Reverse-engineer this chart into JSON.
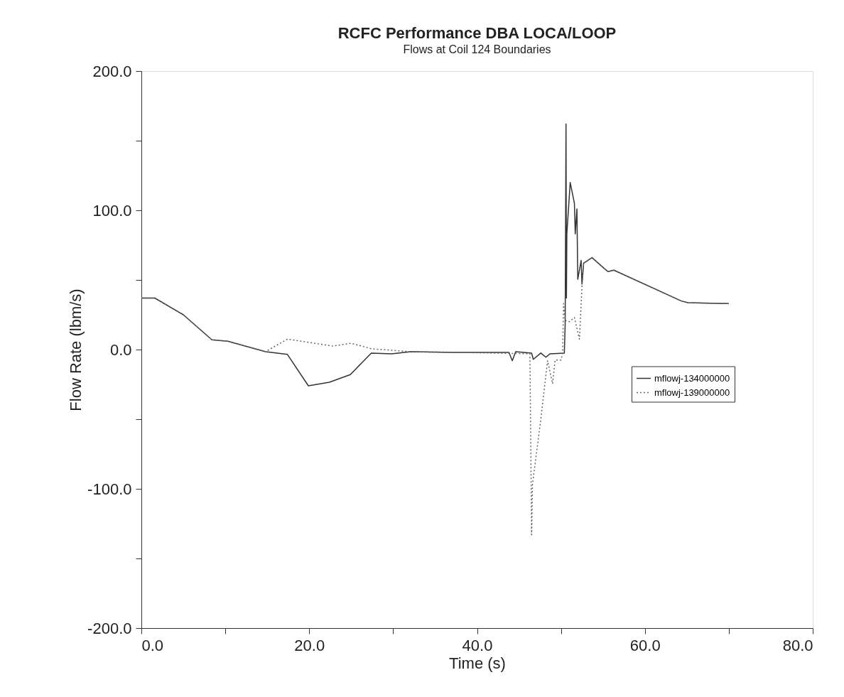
{
  "chart_data": {
    "type": "line",
    "title": "RCFC Performance DBA LOCA/LOOP",
    "subtitle": "Flows at Coil 124 Boundaries",
    "xlabel": "Time (s)",
    "ylabel": "Flow Rate (lbm/s)",
    "xlim": [
      0,
      80
    ],
    "ylim": [
      -200,
      200
    ],
    "xticks": [
      {
        "value": 0,
        "label": "0.0"
      },
      {
        "value": 10,
        "label": null
      },
      {
        "value": 20,
        "label": "20.0"
      },
      {
        "value": 30,
        "label": null
      },
      {
        "value": 40,
        "label": "40.0"
      },
      {
        "value": 50,
        "label": null
      },
      {
        "value": 60,
        "label": "60.0"
      },
      {
        "value": 70,
        "label": null
      },
      {
        "value": 80,
        "label": "80.0"
      }
    ],
    "yticks": [
      {
        "value": -200,
        "label": "-200.0"
      },
      {
        "value": -150,
        "label": null
      },
      {
        "value": -100,
        "label": "-100.0"
      },
      {
        "value": -50,
        "label": null
      },
      {
        "value": 0,
        "label": "0.0"
      },
      {
        "value": 50,
        "label": null
      },
      {
        "value": 100,
        "label": "100.0"
      },
      {
        "value": 150,
        "label": null
      },
      {
        "value": 200,
        "label": "200.0"
      }
    ],
    "grid": false,
    "legend": "right",
    "marker": "none",
    "series": [
      {
        "name": "mflowj-134000000",
        "color": "#333333",
        "line_style": "solid",
        "x": [
          0,
          1.6,
          5.0,
          8.4,
          10.3,
          14.8,
          17.4,
          19.9,
          22.4,
          24.9,
          27.4,
          29.8,
          32.1,
          37.2,
          43.8,
          44.2,
          44.6,
          46.5,
          46.7,
          47.6,
          48.2,
          48.7,
          50.4,
          50.5,
          50.6,
          50.65,
          50.7,
          51.1,
          51.6,
          51.7,
          51.9,
          52.0,
          52.4,
          52.5,
          52.7,
          53.7,
          55.2,
          55.6,
          56.3,
          64.3,
          65.1,
          70.0
        ],
        "values": [
          37,
          37,
          25,
          7,
          6,
          -1.5,
          -3.5,
          -26,
          -23.5,
          -18,
          -2.5,
          -3,
          -1.5,
          -2,
          -2,
          -8,
          -1.5,
          -2.5,
          -7,
          -2.5,
          -5.5,
          -3,
          -2.5,
          18,
          162,
          37,
          83,
          120,
          105,
          83,
          101,
          50.5,
          64,
          47,
          62,
          66,
          58,
          56,
          57,
          35,
          33.7,
          33
        ]
      },
      {
        "name": "mflowj-139000000",
        "color": "#666666",
        "line_style": "dotted",
        "x": [
          0,
          1.6,
          5.0,
          8.4,
          10.3,
          14.8,
          17.4,
          22.8,
          25.0,
          27.5,
          32.1,
          37.2,
          46.3,
          46.5,
          46.6,
          47.6,
          48.4,
          49.0,
          49.3,
          50.0,
          50.2,
          50.3,
          50.5,
          51.0,
          51.6,
          52.2,
          52.5,
          52.7,
          53.7,
          55.2,
          55.6,
          56.3,
          64.3,
          65.1,
          70.0
        ],
        "values": [
          37,
          37,
          25,
          7,
          6,
          -1.5,
          7.5,
          2.5,
          4.5,
          0.5,
          -1.5,
          -2,
          -3,
          -133,
          -97,
          -50,
          -8,
          -24.5,
          -7.5,
          -7.5,
          -2.5,
          33,
          21,
          20,
          23,
          7.5,
          45,
          62,
          66,
          58,
          56,
          57,
          35,
          33.7,
          33
        ]
      }
    ]
  }
}
